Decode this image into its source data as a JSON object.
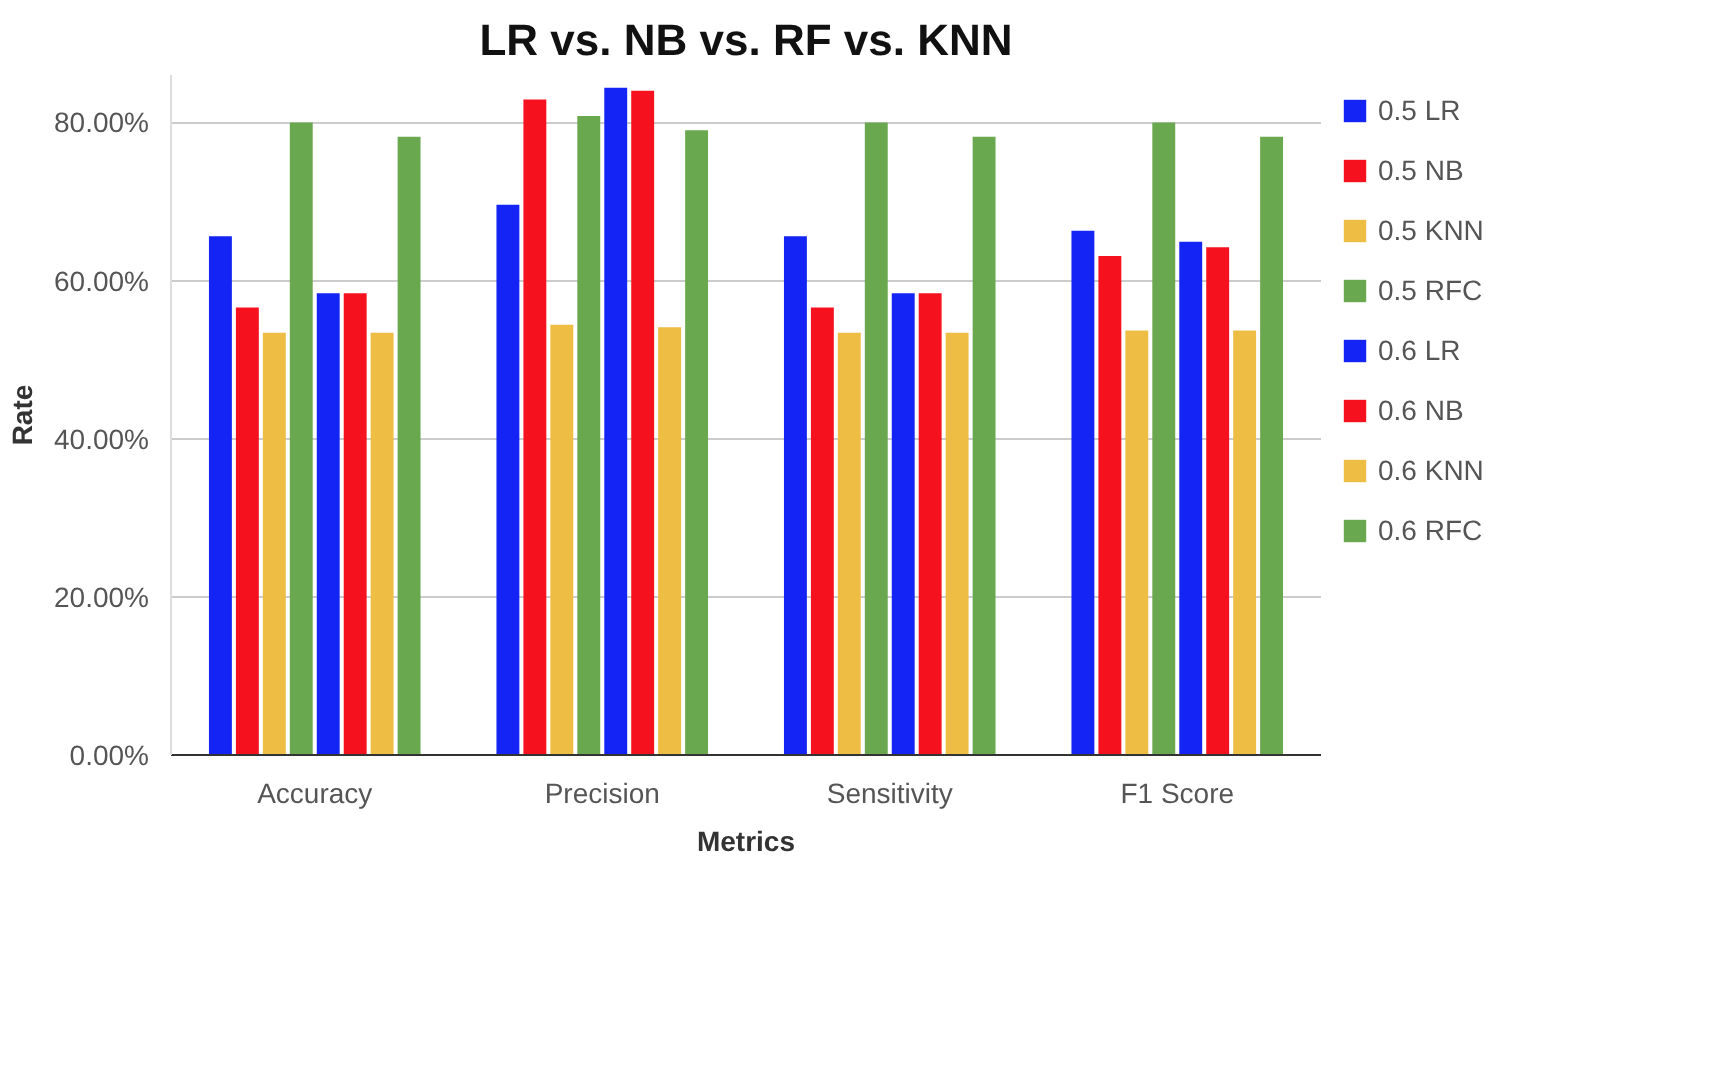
{
  "chart_data": {
    "type": "bar",
    "title": "LR vs. NB vs. RF vs. KNN",
    "xlabel": "Metrics",
    "ylabel": "Rate",
    "categories": [
      "Accuracy",
      "Precision",
      "Sensitivity",
      "F1 Score"
    ],
    "series": [
      {
        "name": "0.5 LR",
        "color": "#1424f5",
        "values": [
          65.6,
          69.6,
          65.6,
          66.3
        ]
      },
      {
        "name": "0.5 NB",
        "color": "#f5121e",
        "values": [
          56.6,
          82.9,
          56.6,
          63.1
        ]
      },
      {
        "name": "0.5 KNN",
        "color": "#eebd43",
        "values": [
          53.4,
          54.4,
          53.4,
          53.7
        ]
      },
      {
        "name": "0.5 RFC",
        "color": "#6aa84f",
        "values": [
          80.0,
          80.8,
          80.0,
          80.0
        ]
      },
      {
        "name": "0.6 LR",
        "color": "#1424f5",
        "values": [
          58.4,
          84.4,
          58.4,
          64.9
        ]
      },
      {
        "name": "0.6 NB",
        "color": "#f5121e",
        "values": [
          58.4,
          84.0,
          58.4,
          64.2
        ]
      },
      {
        "name": "0.6 KNN",
        "color": "#eebd43",
        "values": [
          53.4,
          54.1,
          53.4,
          53.7
        ]
      },
      {
        "name": "0.6 RFC",
        "color": "#6aa84f",
        "values": [
          78.2,
          79.0,
          78.2,
          78.2
        ]
      }
    ],
    "ylim": [
      0,
      86
    ],
    "yticks": [
      {
        "value": 0,
        "label": "0.00%"
      },
      {
        "value": 20,
        "label": "20.00%"
      },
      {
        "value": 40,
        "label": "40.00%"
      },
      {
        "value": 60,
        "label": "60.00%"
      },
      {
        "value": 80,
        "label": "80.00%"
      }
    ],
    "grid": "y",
    "legend": "right"
  }
}
